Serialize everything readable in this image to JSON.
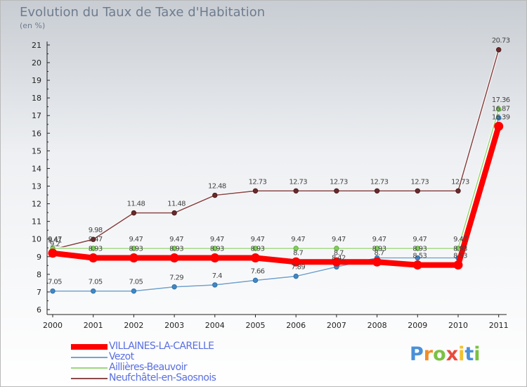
{
  "chart_data": {
    "type": "line",
    "title": "Evolution du Taux de Taxe d'Habitation",
    "subtitle": "(en %)",
    "xlabel": "",
    "ylabel": "",
    "categories": [
      "2000",
      "2001",
      "2002",
      "2003",
      "2004",
      "2005",
      "2006",
      "2007",
      "2008",
      "2009",
      "2010",
      "2011"
    ],
    "yticks": [
      "6",
      "7",
      "8",
      "9",
      "10",
      "11",
      "12",
      "13",
      "14",
      "15",
      "16",
      "17",
      "18",
      "19",
      "20",
      "21"
    ],
    "ylim": [
      6,
      21
    ],
    "grid": false,
    "legend_position": "bottom-left",
    "series": [
      {
        "name": "VILLAINES-LA-CARELLE",
        "color": "#ff0000",
        "values": [
          9.2,
          8.93,
          8.93,
          8.93,
          8.93,
          8.93,
          8.7,
          8.7,
          8.7,
          8.53,
          8.53,
          16.39
        ],
        "labels": [
          "9.2",
          "8.93",
          "8.93",
          "8.93",
          "8.93",
          "8.93",
          "8.7",
          "8.7",
          "8.7",
          "8.53",
          "8.53",
          "16.39"
        ]
      },
      {
        "name": "Vezot",
        "color": "#76a4cf",
        "values": [
          7.05,
          7.05,
          7.05,
          7.29,
          7.4,
          7.66,
          7.89,
          8.42,
          8.93,
          8.93,
          8.93,
          16.87
        ],
        "labels": [
          "7.05",
          "7.05",
          "7.05",
          "7.29",
          "7.4",
          "7.66",
          "7.89",
          "8.42",
          "8.93",
          "8.93",
          "8.93",
          "16.87"
        ]
      },
      {
        "name": "Aillières-Beauvoir",
        "color": "#9bd97d",
        "values": [
          9.47,
          9.47,
          9.47,
          9.47,
          9.47,
          9.47,
          9.47,
          9.47,
          9.47,
          9.47,
          9.47,
          17.36
        ],
        "labels": [
          "9.47",
          "9.47",
          "9.47",
          "9.47",
          "9.47",
          "9.47",
          "9.47",
          "9.47",
          "9.47",
          "9.47",
          "9.47",
          "17.36"
        ]
      },
      {
        "name": "Neufchâtel-en-Saosnois",
        "color": "#8b4a4a",
        "values": [
          9.41,
          9.98,
          11.48,
          11.48,
          12.48,
          12.73,
          12.73,
          12.73,
          12.73,
          12.73,
          12.73,
          20.73
        ],
        "labels": [
          "9.41",
          "9.98",
          "11.48",
          "11.48",
          "12.48",
          "12.73",
          "12.73",
          "12.73",
          "12.73",
          "12.73",
          "12.73",
          "20.73"
        ]
      }
    ]
  },
  "brand": {
    "letters": [
      "P",
      "r",
      "o",
      "x",
      "i",
      "t",
      "i"
    ],
    "colors": [
      "#4a90d9",
      "#f28c28",
      "#7bc142",
      "#e84c3d",
      "#f2c12e",
      "#4a90d9",
      "#7bc142"
    ]
  }
}
